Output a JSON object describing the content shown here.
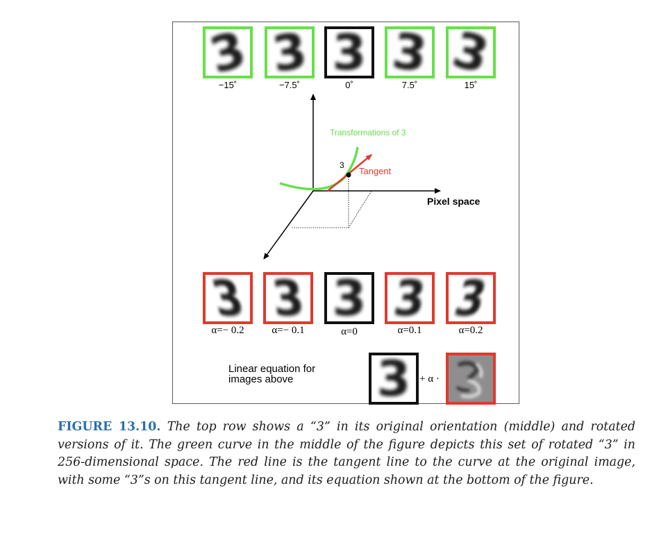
{
  "top_row": [
    {
      "label": "−15˚",
      "style": "green",
      "rotation_deg": -15
    },
    {
      "label": "−7.5˚",
      "style": "green",
      "rotation_deg": -7.5
    },
    {
      "label": "0˚",
      "style": "black",
      "rotation_deg": 0
    },
    {
      "label": "7.5˚",
      "style": "green",
      "rotation_deg": 7.5
    },
    {
      "label": "15˚",
      "style": "green",
      "rotation_deg": 15
    }
  ],
  "diagram": {
    "curve_label": "Transformations of 3",
    "point_label": "3",
    "tangent_label": "Tangent",
    "axis_label": "Pixel space"
  },
  "bottom_row": [
    {
      "label": "α=− 0.2",
      "style": "red",
      "alpha": -0.2
    },
    {
      "label": "α=− 0.1",
      "style": "red",
      "alpha": -0.1
    },
    {
      "label": "α=0",
      "style": "black",
      "alpha": 0
    },
    {
      "label": "α=0.1",
      "style": "red",
      "alpha": 0.1
    },
    {
      "label": "α=0.2",
      "style": "red",
      "alpha": 0.2
    }
  ],
  "equation": {
    "text": "Linear equation for images above",
    "operator": "+ α ·"
  },
  "caption": {
    "label": "FIGURE 13.10.",
    "text": "The top row shows a “3” in its original orientation (middle) and rotated versions of it. The green curve in the middle of the figure depicts this set of rotated “3” in 256-dimensional space. The red line is the tangent line to the curve at the original image, with some “3”s on this tangent line, and its equation shown at the bottom of the figure."
  },
  "colors": {
    "green": "#66e04a",
    "red": "#e03a2c",
    "caption_label": "#2a6fa8"
  }
}
